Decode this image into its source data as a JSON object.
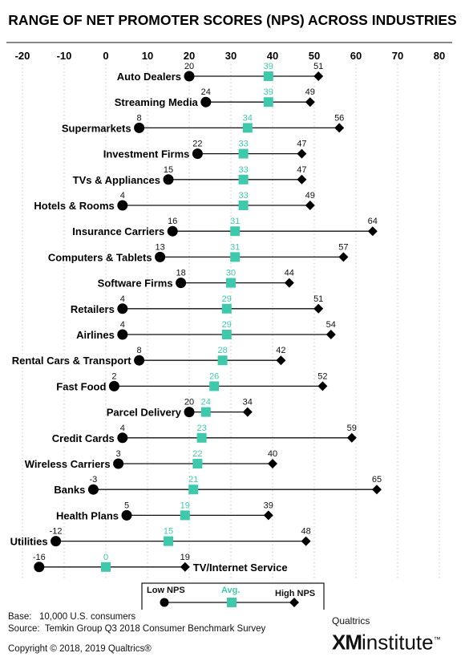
{
  "chart_data": {
    "type": "dumbbell",
    "title": "RANGE OF NET PROMOTER SCORES (NPS) ACROSS INDUSTRIES",
    "xlim": [
      -20,
      80
    ],
    "xticks": [
      -20,
      -10,
      0,
      10,
      20,
      30,
      40,
      50,
      60,
      70,
      80
    ],
    "grid": "vertical dotted",
    "colors": {
      "low": "#000000",
      "high": "#000000",
      "avg": "#3ec9ad"
    },
    "legend": {
      "low": "Low NPS",
      "avg": "Avg.",
      "high": "High NPS",
      "placement": "bottom-center"
    },
    "categories": [
      "Auto Dealers",
      "Streaming Media",
      "Supermarkets",
      "Investment Firms",
      "TVs & Appliances",
      "Hotels & Rooms",
      "Insurance Carriers",
      "Computers & Tablets",
      "Software Firms",
      "Retailers",
      "Airlines",
      "Rental Cars & Transport",
      "Fast Food",
      "Parcel Delivery",
      "Credit Cards",
      "Wireless Carriers",
      "Banks",
      "Health Plans",
      "Utilities",
      "TV/Internet Service"
    ],
    "low": [
      20,
      24,
      8,
      22,
      15,
      4,
      16,
      13,
      18,
      4,
      4,
      8,
      2,
      20,
      4,
      3,
      -3,
      5,
      -12,
      -16
    ],
    "avg": [
      39,
      39,
      34,
      33,
      33,
      33,
      31,
      31,
      30,
      29,
      29,
      28,
      26,
      24,
      23,
      22,
      21,
      19,
      15,
      0
    ],
    "high": [
      51,
      49,
      56,
      47,
      47,
      49,
      64,
      57,
      44,
      51,
      54,
      42,
      52,
      34,
      59,
      40,
      65,
      39,
      48,
      19
    ]
  },
  "footer": {
    "base_label": "Base:",
    "base_value": "10,000 U.S. consumers",
    "source_label": "Source:",
    "source_value": "Temkin Group Q3 2018 Consumer Benchmark Survey",
    "copyright": "Copyright © 2018, 2019 Qualtrics®"
  },
  "brand": {
    "company": "Qualtrics",
    "xm": "XM",
    "institute": "institute",
    "tm": "™"
  }
}
